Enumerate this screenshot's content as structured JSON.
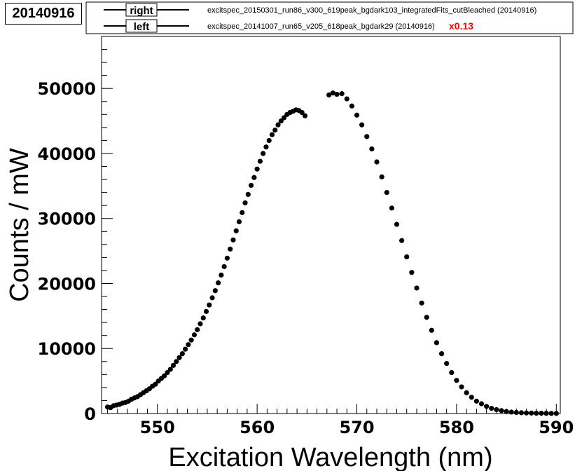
{
  "run_label": "20140916",
  "legend": [
    {
      "tag": "right",
      "description": "excitspec_20150301_run86_v300_619peak_bgdark103_integratedFits_cutBleached (20140916)",
      "scale": ""
    },
    {
      "tag": "left",
      "description": "excitspec_20141007_run65_v205_618peak_bgdark29 (20140916)",
      "scale": "x0.13"
    }
  ],
  "colors": {
    "marker": "#000000",
    "scale_text": "#ff0000"
  },
  "chart_data": {
    "type": "scatter",
    "title": "",
    "xlabel": "Excitation Wavelength (nm)",
    "ylabel": "Counts / mW",
    "xlim": [
      544.4,
      590.4
    ],
    "ylim": [
      0,
      58000
    ],
    "xticks": [
      550,
      560,
      570,
      580,
      590
    ],
    "yticks": [
      0,
      10000,
      20000,
      30000,
      40000,
      50000
    ],
    "xtick_labels": [
      "550",
      "560",
      "570",
      "580",
      "590"
    ],
    "ytick_labels": [
      "0",
      "10000",
      "20000",
      "30000",
      "40000",
      "50000"
    ],
    "grid": false,
    "legend_position": "top",
    "series": [
      {
        "name": "left",
        "x": [
          545.0,
          545.3,
          545.6,
          545.9,
          546.2,
          546.5,
          546.8,
          547.1,
          547.4,
          547.7,
          548.0,
          548.3,
          548.6,
          548.9,
          549.2,
          549.5,
          549.8,
          550.1,
          550.4,
          550.7,
          551.0,
          551.3,
          551.6,
          551.9,
          552.2,
          552.5,
          552.8,
          553.1,
          553.4,
          553.7,
          554.0,
          554.3,
          554.6,
          554.9,
          555.2,
          555.5,
          555.8,
          556.1,
          556.4,
          556.7,
          557.0,
          557.3,
          557.6,
          557.9,
          558.2,
          558.5,
          558.8,
          559.1,
          559.4,
          559.7,
          560.0,
          560.3,
          560.6,
          560.9,
          561.2,
          561.5,
          561.8,
          562.1,
          562.4,
          562.7,
          563.0,
          563.3,
          563.6,
          563.9,
          564.2,
          564.5,
          564.8
        ],
        "y": [
          1000,
          900,
          1200,
          1300,
          1400,
          1600,
          1700,
          1900,
          2200,
          2400,
          2600,
          2900,
          3200,
          3500,
          3800,
          4200,
          4500,
          5000,
          5400,
          5800,
          6300,
          6800,
          7400,
          8000,
          8600,
          9200,
          9900,
          10600,
          11300,
          12100,
          12900,
          13800,
          14700,
          15700,
          16700,
          17800,
          18900,
          20100,
          21300,
          22600,
          23900,
          25300,
          26700,
          28100,
          29500,
          30900,
          32400,
          33700,
          35100,
          36300,
          37600,
          38800,
          40000,
          41000,
          42000,
          42900,
          43600,
          44400,
          45000,
          45500,
          46000,
          46300,
          46500,
          46700,
          46600,
          46300,
          45800
        ]
      },
      {
        "name": "right",
        "x": [
          567.2,
          567.6,
          568.0,
          568.5,
          569.0,
          569.5,
          570.0,
          570.5,
          571.0,
          571.5,
          572.0,
          572.5,
          573.0,
          573.5,
          574.0,
          574.5,
          575.0,
          575.5,
          576.0,
          576.5,
          577.0,
          577.5,
          578.0,
          578.5,
          579.0,
          579.5,
          580.0,
          580.5,
          581.0,
          581.5,
          582.0,
          582.5,
          583.0,
          583.5,
          584.0,
          584.5,
          585.0,
          585.5,
          586.0,
          586.5,
          587.0,
          587.5,
          588.0,
          588.5,
          589.0,
          589.5,
          590.0
        ],
        "y": [
          49000,
          49300,
          49100,
          49200,
          48400,
          47300,
          45900,
          44400,
          42600,
          40700,
          38700,
          36400,
          34000,
          31600,
          29100,
          26600,
          24100,
          21700,
          19300,
          17000,
          14800,
          12800,
          10900,
          9200,
          7700,
          6300,
          5100,
          4100,
          3200,
          2500,
          1900,
          1500,
          1100,
          800,
          600,
          450,
          300,
          220,
          160,
          120,
          90,
          70,
          50,
          40,
          30,
          20,
          20
        ]
      }
    ]
  }
}
